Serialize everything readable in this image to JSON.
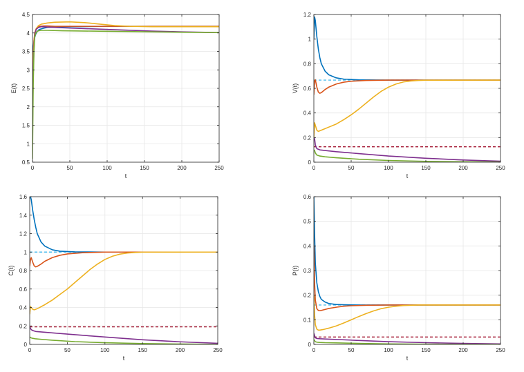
{
  "colors": {
    "blue": "#0072BD",
    "red": "#D95319",
    "yellow": "#EDB120",
    "purple": "#7E2F8E",
    "green": "#77AC30",
    "light_blue_dashed": "#4DBEEE",
    "dark_red_dashed": "#A2142F",
    "grid": "#e6e6e6",
    "axis": "#262626"
  },
  "chart_data": [
    {
      "id": "E",
      "type": "line",
      "xlabel": "t",
      "ylabel": "E(t)",
      "xlim": [
        0,
        250
      ],
      "ylim": [
        0.5,
        4.5
      ],
      "xticks": [
        0,
        50,
        100,
        150,
        200,
        250
      ],
      "yticks": [
        0.5,
        1,
        1.5,
        2,
        2.5,
        3,
        3.5,
        4,
        4.5
      ],
      "grid": true,
      "series": [
        {
          "color": "blue",
          "x": [
            0,
            1,
            2,
            4,
            6,
            8,
            10,
            15,
            20,
            30,
            50,
            100,
            150,
            200,
            250
          ],
          "values": [
            3.3,
            3.6,
            3.8,
            3.95,
            4.03,
            4.08,
            4.1,
            4.13,
            4.15,
            4.16,
            4.17,
            4.18,
            4.18,
            4.18,
            4.18
          ]
        },
        {
          "color": "red",
          "x": [
            0,
            1,
            2,
            3,
            5,
            7,
            10,
            15,
            20,
            30,
            50,
            100,
            150,
            200,
            250
          ],
          "values": [
            2.6,
            3.4,
            3.8,
            4.0,
            4.12,
            4.16,
            4.18,
            4.19,
            4.19,
            4.18,
            4.18,
            4.18,
            4.18,
            4.18,
            4.18
          ]
        },
        {
          "color": "yellow",
          "x": [
            0,
            1,
            2,
            3,
            5,
            8,
            12,
            20,
            30,
            50,
            70,
            90,
            110,
            130,
            160,
            200,
            250
          ],
          "values": [
            2.5,
            3.3,
            3.7,
            3.95,
            4.12,
            4.2,
            4.24,
            4.27,
            4.29,
            4.3,
            4.28,
            4.24,
            4.2,
            4.18,
            4.17,
            4.17,
            4.17
          ]
        },
        {
          "color": "purple",
          "x": [
            0,
            1,
            2,
            3,
            5,
            8,
            12,
            20,
            40,
            80,
            120,
            160,
            200,
            250
          ],
          "values": [
            1.3,
            2.9,
            3.6,
            3.95,
            4.1,
            4.15,
            4.17,
            4.16,
            4.14,
            4.11,
            4.08,
            4.05,
            4.03,
            4.01
          ]
        },
        {
          "color": "green",
          "x": [
            0,
            1,
            2,
            3,
            5,
            8,
            12,
            20,
            40,
            80,
            120,
            160,
            200,
            250
          ],
          "values": [
            0.6,
            2.6,
            3.5,
            3.9,
            4.02,
            4.06,
            4.07,
            4.07,
            4.06,
            4.05,
            4.04,
            4.03,
            4.02,
            4.01
          ]
        }
      ]
    },
    {
      "id": "V",
      "type": "line",
      "xlabel": "t",
      "ylabel": "V(t)",
      "xlim": [
        0,
        250
      ],
      "ylim": [
        0,
        1.2
      ],
      "xticks": [
        0,
        50,
        100,
        150,
        200,
        250
      ],
      "yticks": [
        0,
        0.2,
        0.4,
        0.6,
        0.8,
        1,
        1.2
      ],
      "grid": true,
      "reference_lines": [
        {
          "color": "light_blue_dashed",
          "y": 0.667
        },
        {
          "color": "dark_red_dashed",
          "y": 0.125
        }
      ],
      "series": [
        {
          "color": "blue",
          "x": [
            0,
            1,
            2,
            4,
            6,
            8,
            10,
            15,
            20,
            30,
            40,
            60,
            100,
            250
          ],
          "values": [
            1.0,
            1.18,
            1.15,
            1.02,
            0.92,
            0.85,
            0.8,
            0.74,
            0.71,
            0.685,
            0.675,
            0.669,
            0.667,
            0.667
          ]
        },
        {
          "color": "red",
          "x": [
            0,
            1,
            2,
            4,
            6,
            8,
            10,
            15,
            20,
            30,
            40,
            50,
            70,
            100,
            250
          ],
          "values": [
            0.55,
            0.66,
            0.67,
            0.61,
            0.57,
            0.56,
            0.565,
            0.59,
            0.61,
            0.635,
            0.65,
            0.658,
            0.664,
            0.667,
            0.667
          ]
        },
        {
          "color": "yellow",
          "x": [
            0,
            1,
            2,
            4,
            6,
            8,
            12,
            20,
            30,
            40,
            50,
            60,
            70,
            80,
            90,
            100,
            110,
            120,
            130,
            140,
            150,
            250
          ],
          "values": [
            0.2,
            0.32,
            0.3,
            0.26,
            0.25,
            0.255,
            0.265,
            0.285,
            0.31,
            0.345,
            0.385,
            0.43,
            0.48,
            0.53,
            0.575,
            0.61,
            0.635,
            0.652,
            0.66,
            0.664,
            0.666,
            0.667
          ]
        },
        {
          "color": "purple",
          "x": [
            0,
            1,
            2,
            4,
            8,
            15,
            30,
            60,
            100,
            150,
            200,
            250
          ],
          "values": [
            0.2,
            0.19,
            0.14,
            0.11,
            0.1,
            0.095,
            0.085,
            0.07,
            0.05,
            0.032,
            0.018,
            0.008
          ]
        },
        {
          "color": "green",
          "x": [
            0,
            1,
            2,
            4,
            8,
            15,
            30,
            60,
            100,
            150,
            200,
            250
          ],
          "values": [
            0.1,
            0.095,
            0.075,
            0.058,
            0.05,
            0.044,
            0.036,
            0.024,
            0.014,
            0.007,
            0.003,
            0.001
          ]
        }
      ]
    },
    {
      "id": "C",
      "type": "line",
      "xlabel": "t",
      "ylabel": "C(t)",
      "xlim": [
        0,
        250
      ],
      "ylim": [
        0,
        1.6
      ],
      "xticks": [
        0,
        50,
        100,
        150,
        200,
        250
      ],
      "yticks": [
        0,
        0.2,
        0.4,
        0.6,
        0.8,
        1,
        1.2,
        1.4,
        1.6
      ],
      "grid": true,
      "reference_lines": [
        {
          "color": "light_blue_dashed",
          "y": 1.0
        },
        {
          "color": "dark_red_dashed",
          "y": 0.19
        }
      ],
      "series": [
        {
          "color": "blue",
          "x": [
            0,
            1,
            2,
            4,
            6,
            8,
            10,
            15,
            20,
            30,
            40,
            60,
            100,
            250
          ],
          "values": [
            1.6,
            1.6,
            1.57,
            1.45,
            1.35,
            1.27,
            1.2,
            1.11,
            1.065,
            1.025,
            1.01,
            1.002,
            1.0,
            1.0
          ]
        },
        {
          "color": "red",
          "x": [
            0,
            1,
            2,
            4,
            6,
            8,
            10,
            15,
            20,
            30,
            40,
            50,
            70,
            100,
            250
          ],
          "values": [
            0.85,
            0.92,
            0.94,
            0.89,
            0.85,
            0.84,
            0.845,
            0.87,
            0.9,
            0.94,
            0.965,
            0.98,
            0.993,
            1.0,
            1.0
          ]
        },
        {
          "color": "yellow",
          "x": [
            0,
            1,
            2,
            4,
            6,
            8,
            12,
            20,
            30,
            40,
            50,
            60,
            70,
            80,
            90,
            100,
            110,
            120,
            130,
            140,
            150,
            250
          ],
          "values": [
            0.33,
            0.41,
            0.4,
            0.38,
            0.375,
            0.38,
            0.395,
            0.43,
            0.48,
            0.54,
            0.6,
            0.67,
            0.74,
            0.81,
            0.87,
            0.92,
            0.955,
            0.978,
            0.99,
            0.996,
            0.999,
            1.0
          ]
        },
        {
          "color": "purple",
          "x": [
            0,
            1,
            2,
            4,
            8,
            15,
            30,
            60,
            100,
            150,
            200,
            250
          ],
          "values": [
            0.19,
            0.175,
            0.16,
            0.15,
            0.14,
            0.135,
            0.125,
            0.105,
            0.08,
            0.05,
            0.028,
            0.012
          ]
        },
        {
          "color": "green",
          "x": [
            0,
            1,
            2,
            4,
            8,
            15,
            30,
            60,
            100,
            150,
            200,
            250
          ],
          "values": [
            0.08,
            0.075,
            0.07,
            0.066,
            0.06,
            0.055,
            0.045,
            0.03,
            0.018,
            0.009,
            0.004,
            0.001
          ]
        }
      ]
    },
    {
      "id": "P",
      "type": "line",
      "xlabel": "t",
      "ylabel": "P(t)",
      "xlim": [
        0,
        250
      ],
      "ylim": [
        0,
        0.6
      ],
      "xticks": [
        0,
        50,
        100,
        150,
        200,
        250
      ],
      "yticks": [
        0,
        0.1,
        0.2,
        0.3,
        0.4,
        0.5,
        0.6
      ],
      "grid": true,
      "reference_lines": [
        {
          "color": "light_blue_dashed",
          "y": 0.16
        },
        {
          "color": "dark_red_dashed",
          "y": 0.03
        }
      ],
      "series": [
        {
          "color": "blue",
          "x": [
            0,
            1,
            2,
            4,
            6,
            8,
            10,
            15,
            20,
            30,
            40,
            60,
            100,
            250
          ],
          "values": [
            0.6,
            0.45,
            0.33,
            0.25,
            0.215,
            0.195,
            0.183,
            0.172,
            0.166,
            0.162,
            0.161,
            0.16,
            0.16,
            0.16
          ]
        },
        {
          "color": "red",
          "x": [
            0,
            1,
            2,
            4,
            6,
            8,
            10,
            15,
            20,
            30,
            40,
            50,
            70,
            100,
            250
          ],
          "values": [
            0.4,
            0.25,
            0.18,
            0.145,
            0.138,
            0.137,
            0.138,
            0.142,
            0.146,
            0.151,
            0.155,
            0.157,
            0.159,
            0.16,
            0.16
          ]
        },
        {
          "color": "yellow",
          "x": [
            0,
            1,
            2,
            4,
            6,
            8,
            12,
            20,
            30,
            40,
            50,
            60,
            70,
            80,
            90,
            100,
            110,
            120,
            130,
            140,
            150,
            250
          ],
          "values": [
            0.2,
            0.12,
            0.08,
            0.062,
            0.058,
            0.058,
            0.06,
            0.066,
            0.075,
            0.087,
            0.1,
            0.113,
            0.125,
            0.136,
            0.145,
            0.151,
            0.155,
            0.158,
            0.159,
            0.16,
            0.16,
            0.16
          ]
        },
        {
          "color": "purple",
          "x": [
            0,
            1,
            2,
            4,
            8,
            15,
            30,
            60,
            100,
            150,
            200,
            250
          ],
          "values": [
            0.045,
            0.035,
            0.027,
            0.024,
            0.023,
            0.022,
            0.02,
            0.016,
            0.011,
            0.007,
            0.004,
            0.002
          ]
        },
        {
          "color": "green",
          "x": [
            0,
            1,
            2,
            4,
            8,
            15,
            30,
            60,
            100,
            150,
            200,
            250
          ],
          "values": [
            0.02,
            0.015,
            0.011,
            0.009,
            0.008,
            0.007,
            0.006,
            0.004,
            0.002,
            0.001,
            0.0005,
            0.0002
          ]
        }
      ]
    }
  ]
}
